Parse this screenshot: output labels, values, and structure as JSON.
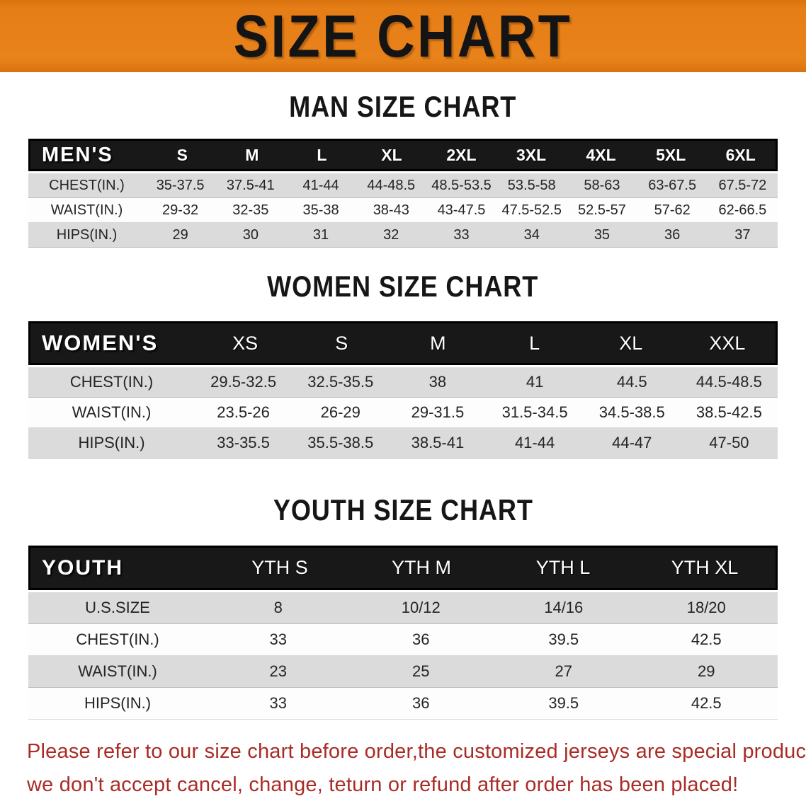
{
  "banner": {
    "title": "SIZE CHART",
    "bg_color": "#E67E17",
    "text_color": "#141414"
  },
  "sections": [
    {
      "heading": "MAN SIZE CHART",
      "table": {
        "header_label": "MEN'S",
        "columns": [
          "S",
          "M",
          "L",
          "XL",
          "2XL",
          "3XL",
          "4XL",
          "5XL",
          "6XL"
        ],
        "rows": [
          {
            "label": "CHEST(IN.)",
            "values": [
              "35-37.5",
              "37.5-41",
              "41-44",
              "44-48.5",
              "48.5-53.5",
              "53.5-58",
              "58-63",
              "63-67.5",
              "67.5-72"
            ]
          },
          {
            "label": "WAIST(IN.)",
            "values": [
              "29-32",
              "32-35",
              "35-38",
              "38-43",
              "43-47.5",
              "47.5-52.5",
              "52.5-57",
              "57-62",
              "62-66.5"
            ]
          },
          {
            "label": "HIPS(IN.)",
            "values": [
              "29",
              "30",
              "31",
              "32",
              "33",
              "34",
              "35",
              "36",
              "37"
            ]
          }
        ]
      }
    },
    {
      "heading": "WOMEN SIZE CHART",
      "table": {
        "header_label": "WOMEN'S",
        "columns": [
          "XS",
          "S",
          "M",
          "L",
          "XL",
          "XXL"
        ],
        "rows": [
          {
            "label": "CHEST(IN.)",
            "values": [
              "29.5-32.5",
              "32.5-35.5",
              "38",
              "41",
              "44.5",
              "44.5-48.5"
            ]
          },
          {
            "label": "WAIST(IN.)",
            "values": [
              "23.5-26",
              "26-29",
              "29-31.5",
              "31.5-34.5",
              "34.5-38.5",
              "38.5-42.5"
            ]
          },
          {
            "label": "HIPS(IN.)",
            "values": [
              "33-35.5",
              "35.5-38.5",
              "38.5-41",
              "41-44",
              "44-47",
              "47-50"
            ]
          }
        ]
      }
    },
    {
      "heading": "YOUTH SIZE CHART",
      "table": {
        "header_label": "YOUTH",
        "columns": [
          "YTH S",
          "YTH M",
          "YTH L",
          "YTH XL"
        ],
        "rows": [
          {
            "label": "U.S.SIZE",
            "values": [
              "8",
              "10/12",
              "14/16",
              "18/20"
            ]
          },
          {
            "label": "CHEST(IN.)",
            "values": [
              "33",
              "36",
              "39.5",
              "42.5"
            ]
          },
          {
            "label": "WAIST(IN.)",
            "values": [
              "23",
              "25",
              "27",
              "29"
            ]
          },
          {
            "label": "HIPS(IN.)",
            "values": [
              "33",
              "36",
              "39.5",
              "42.5"
            ]
          }
        ]
      }
    }
  ],
  "disclaimer": {
    "color": "#A92C26",
    "lines": [
      "Please refer to our size chart before order,the customized jerseys are special products,",
      "we don't accept cancel, change, teturn or refund after order has been placed!"
    ]
  }
}
